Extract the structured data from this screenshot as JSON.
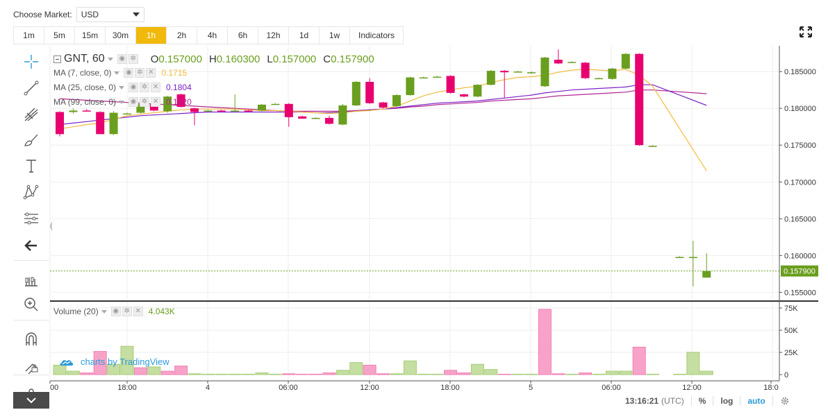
{
  "market": {
    "label": "Choose Market:",
    "selected": "USD"
  },
  "intervals": [
    {
      "label": "1m",
      "active": false
    },
    {
      "label": "5m",
      "active": false
    },
    {
      "label": "15m",
      "active": false
    },
    {
      "label": "30m",
      "active": false
    },
    {
      "label": "1h",
      "active": true
    },
    {
      "label": "2h",
      "active": false
    },
    {
      "label": "4h",
      "active": false
    },
    {
      "label": "6h",
      "active": false
    },
    {
      "label": "12h",
      "active": false
    },
    {
      "label": "1d",
      "active": false
    },
    {
      "label": "1w",
      "active": false
    },
    {
      "label": "Indicators",
      "active": false
    }
  ],
  "tools": [
    {
      "name": "crosshair-icon"
    },
    {
      "name": "trend-line-icon"
    },
    {
      "name": "pitchfork-icon"
    },
    {
      "name": "brush-icon"
    },
    {
      "name": "text-tool-icon"
    },
    {
      "name": "pattern-icon"
    },
    {
      "name": "measure-icon"
    },
    {
      "name": "arrow-left-icon"
    },
    {
      "name": "chart-style-icon"
    },
    {
      "name": "zoom-in-icon"
    },
    {
      "name": "magnet-icon"
    },
    {
      "name": "lock-drawing-icon"
    },
    {
      "name": "lock-icon"
    }
  ],
  "legend": {
    "symbol": "GNT, 60",
    "open_key": "O",
    "open": "0.157000",
    "high_key": "H",
    "high": "0.160300",
    "low_key": "L",
    "low": "0.157000",
    "close_key": "C",
    "close": "0.157900",
    "ma7": {
      "name": "MA (7, close, 0)",
      "value": "0.1715",
      "color": "#f5b93a"
    },
    "ma25": {
      "name": "MA (25, close, 0)",
      "value": "0.1804",
      "color": "#7a20c8"
    },
    "ma99": {
      "name": "MA (99, close, 0)",
      "value": "0.1820",
      "color": "#b12593"
    },
    "volume": {
      "name": "Volume (20)",
      "value": "4.043K"
    }
  },
  "watermark": "charts by TradingView",
  "bottom": {
    "clock": "13:16:21",
    "tz": "(UTC)",
    "percent": "%",
    "log": "log",
    "auto": "auto"
  },
  "colors": {
    "up": "#6a9e1f",
    "down": "#e8006f",
    "up_vol": "#c5dea1",
    "down_vol": "#f7a3c9",
    "price_line": "#6a9e1f",
    "accent": "#f0b90b"
  },
  "chart_data": {
    "type": "candlestick",
    "symbol": "GNT",
    "interval": "60",
    "price_axis": {
      "ticks": [
        "0.185000",
        "0.180000",
        "0.175000",
        "0.170000",
        "0.165000",
        "0.160000",
        "0.155000"
      ],
      "range": [
        0.154,
        0.1885
      ]
    },
    "current_price": "0.157900",
    "time_axis": {
      "ticks": [
        "00",
        "18:00",
        "4",
        "06:00",
        "12:00",
        "18:00",
        "5",
        "06:00",
        "12:00",
        "18:0"
      ]
    },
    "volume_axis": {
      "ticks": [
        "75K",
        "50K",
        "25K",
        "0"
      ],
      "range": [
        0,
        80000
      ]
    },
    "candles": [
      {
        "o": 0.1795,
        "h": 0.1796,
        "l": 0.1762,
        "c": 0.1765
      },
      {
        "o": 0.1795,
        "h": 0.18,
        "l": 0.1793,
        "c": 0.1797
      },
      {
        "o": 0.1797,
        "h": 0.1799,
        "l": 0.1796,
        "c": 0.1796
      },
      {
        "o": 0.1795,
        "h": 0.1796,
        "l": 0.1765,
        "c": 0.1765
      },
      {
        "o": 0.1765,
        "h": 0.1796,
        "l": 0.1764,
        "c": 0.1794
      },
      {
        "o": 0.1793,
        "h": 0.1794,
        "l": 0.1792,
        "c": 0.1793
      },
      {
        "o": 0.1794,
        "h": 0.1808,
        "l": 0.1793,
        "c": 0.1806
      },
      {
        "o": 0.1806,
        "h": 0.1809,
        "l": 0.1796,
        "c": 0.1797
      },
      {
        "o": 0.1796,
        "h": 0.1817,
        "l": 0.1794,
        "c": 0.1816
      },
      {
        "o": 0.1819,
        "h": 0.182,
        "l": 0.1801,
        "c": 0.1802
      },
      {
        "o": 0.18,
        "h": 0.1801,
        "l": 0.1777,
        "c": 0.1795
      },
      {
        "o": 0.1797,
        "h": 0.1798,
        "l": 0.1796,
        "c": 0.1797
      },
      {
        "o": 0.1797,
        "h": 0.1798,
        "l": 0.1795,
        "c": 0.1796
      },
      {
        "o": 0.1796,
        "h": 0.1819,
        "l": 0.1795,
        "c": 0.1797
      },
      {
        "o": 0.1797,
        "h": 0.1798,
        "l": 0.1795,
        "c": 0.1796
      },
      {
        "o": 0.1797,
        "h": 0.1806,
        "l": 0.1796,
        "c": 0.1805
      },
      {
        "o": 0.1806,
        "h": 0.1807,
        "l": 0.1805,
        "c": 0.1806
      },
      {
        "o": 0.1806,
        "h": 0.1807,
        "l": 0.1775,
        "c": 0.1788
      },
      {
        "o": 0.1789,
        "h": 0.179,
        "l": 0.1786,
        "c": 0.1786
      },
      {
        "o": 0.1787,
        "h": 0.1788,
        "l": 0.1786,
        "c": 0.1787
      },
      {
        "o": 0.1787,
        "h": 0.179,
        "l": 0.1778,
        "c": 0.1779
      },
      {
        "o": 0.1778,
        "h": 0.1806,
        "l": 0.1777,
        "c": 0.1804
      },
      {
        "o": 0.1804,
        "h": 0.1837,
        "l": 0.1803,
        "c": 0.1836
      },
      {
        "o": 0.1836,
        "h": 0.1841,
        "l": 0.1806,
        "c": 0.1807
      },
      {
        "o": 0.1808,
        "h": 0.1809,
        "l": 0.18,
        "c": 0.1801
      },
      {
        "o": 0.1803,
        "h": 0.1819,
        "l": 0.1802,
        "c": 0.1818
      },
      {
        "o": 0.1818,
        "h": 0.1843,
        "l": 0.1817,
        "c": 0.1842
      },
      {
        "o": 0.1842,
        "h": 0.1843,
        "l": 0.1841,
        "c": 0.1842
      },
      {
        "o": 0.1843,
        "h": 0.1844,
        "l": 0.1842,
        "c": 0.1843
      },
      {
        "o": 0.1844,
        "h": 0.1845,
        "l": 0.182,
        "c": 0.1821
      },
      {
        "o": 0.1819,
        "h": 0.182,
        "l": 0.1815,
        "c": 0.1816
      },
      {
        "o": 0.1816,
        "h": 0.1833,
        "l": 0.1815,
        "c": 0.1832
      },
      {
        "o": 0.1832,
        "h": 0.1852,
        "l": 0.1831,
        "c": 0.1851
      },
      {
        "o": 0.1851,
        "h": 0.1852,
        "l": 0.1814,
        "c": 0.1849
      },
      {
        "o": 0.185,
        "h": 0.1851,
        "l": 0.1849,
        "c": 0.185
      },
      {
        "o": 0.1849,
        "h": 0.185,
        "l": 0.1847,
        "c": 0.1849
      },
      {
        "o": 0.183,
        "h": 0.187,
        "l": 0.1829,
        "c": 0.1869
      },
      {
        "o": 0.1866,
        "h": 0.188,
        "l": 0.186,
        "c": 0.1861
      },
      {
        "o": 0.1863,
        "h": 0.1864,
        "l": 0.1862,
        "c": 0.1863
      },
      {
        "o": 0.1862,
        "h": 0.1863,
        "l": 0.184,
        "c": 0.1841
      },
      {
        "o": 0.1841,
        "h": 0.1842,
        "l": 0.184,
        "c": 0.1841
      },
      {
        "o": 0.184,
        "h": 0.1855,
        "l": 0.1839,
        "c": 0.1854
      },
      {
        "o": 0.1854,
        "h": 0.1875,
        "l": 0.1853,
        "c": 0.1874
      },
      {
        "o": 0.1874,
        "h": 0.1875,
        "l": 0.1749,
        "c": 0.175
      },
      {
        "o": 0.1749,
        "h": 0.175,
        "l": 0.1748,
        "c": 0.1749
      },
      null,
      {
        "o": 0.1598,
        "h": 0.1599,
        "l": 0.1597,
        "c": 0.1598
      },
      {
        "o": 0.1598,
        "h": 0.162,
        "l": 0.1558,
        "c": 0.1598
      },
      {
        "o": 0.157,
        "h": 0.1603,
        "l": 0.157,
        "c": 0.1579
      }
    ],
    "volumes": [
      {
        "v": 11000,
        "up": true
      },
      {
        "v": 4000,
        "up": true
      },
      {
        "v": 2000,
        "up": false
      },
      {
        "v": 27000,
        "up": false
      },
      {
        "v": 12000,
        "up": true
      },
      {
        "v": 33000,
        "up": true
      },
      {
        "v": 8000,
        "up": false
      },
      {
        "v": 9000,
        "up": true
      },
      {
        "v": 4000,
        "up": false
      },
      {
        "v": 10000,
        "up": false
      },
      {
        "v": 1000,
        "up": true
      },
      {
        "v": 500,
        "up": true
      },
      {
        "v": 500,
        "up": true
      },
      {
        "v": 500,
        "up": true
      },
      {
        "v": 500,
        "up": true
      },
      {
        "v": 2000,
        "up": true
      },
      {
        "v": 500,
        "up": true
      },
      {
        "v": 1000,
        "up": false
      },
      {
        "v": 500,
        "up": false
      },
      {
        "v": 500,
        "up": false
      },
      {
        "v": 2000,
        "up": false
      },
      {
        "v": 5000,
        "up": true
      },
      {
        "v": 14000,
        "up": true
      },
      {
        "v": 11000,
        "up": false
      },
      {
        "v": 1000,
        "up": false
      },
      {
        "v": 1000,
        "up": true
      },
      {
        "v": 16000,
        "up": true
      },
      {
        "v": 500,
        "up": true
      },
      {
        "v": 500,
        "up": true
      },
      {
        "v": 5000,
        "up": false
      },
      {
        "v": 2000,
        "up": false
      },
      {
        "v": 12000,
        "up": true
      },
      {
        "v": 6000,
        "up": true
      },
      {
        "v": 500,
        "up": false
      },
      {
        "v": 500,
        "up": true
      },
      {
        "v": 500,
        "up": true
      },
      {
        "v": 76000,
        "up": false
      },
      {
        "v": 1000,
        "up": false
      },
      {
        "v": 500,
        "up": true
      },
      {
        "v": 2000,
        "up": false
      },
      {
        "v": 500,
        "up": true
      },
      {
        "v": 4000,
        "up": true
      },
      {
        "v": 4000,
        "up": true
      },
      {
        "v": 32000,
        "up": false
      },
      {
        "v": 500,
        "up": true
      },
      null,
      {
        "v": 500,
        "up": true
      },
      {
        "v": 26000,
        "up": true
      },
      {
        "v": 4000,
        "up": true
      }
    ],
    "ma7": [
      0.1772,
      0.1775,
      0.1778,
      0.178,
      0.1785,
      0.179,
      0.1792,
      0.1794,
      0.1796,
      0.1798,
      0.1799,
      0.1799,
      0.1799,
      0.1799,
      0.1798,
      0.1797,
      0.1797,
      0.1796,
      0.1795,
      0.1794,
      0.1793,
      0.1794,
      0.1796,
      0.1797,
      0.1799,
      0.1803,
      0.181,
      0.1817,
      0.1822,
      0.1825,
      0.1828,
      0.183,
      0.1835,
      0.1839,
      0.1842,
      0.1843,
      0.1845,
      0.1849,
      0.1852,
      0.1853,
      0.1852,
      0.1851,
      0.1853,
      0.1845,
      0.183,
      null,
      null,
      null,
      0.1715
    ],
    "ma25": [
      0.1778,
      0.178,
      0.1782,
      0.1784,
      0.1786,
      0.1788,
      0.179,
      0.1791,
      0.1792,
      0.1793,
      0.1794,
      0.1795,
      0.1795,
      0.1795,
      0.1795,
      0.1795,
      0.1795,
      0.1795,
      0.1795,
      0.1794,
      0.1794,
      0.1795,
      0.1796,
      0.1798,
      0.1799,
      0.1801,
      0.1803,
      0.1805,
      0.1807,
      0.1808,
      0.1809,
      0.181,
      0.1812,
      0.1814,
      0.1816,
      0.1818,
      0.1821,
      0.1823,
      0.1825,
      0.1826,
      0.1827,
      0.1828,
      0.1829,
      0.1832,
      0.1832,
      null,
      null,
      null,
      0.1804
    ],
    "ma99": [
      0.1813,
      0.1812,
      0.1811,
      0.181,
      0.1809,
      0.1808,
      0.1807,
      0.1806,
      0.1805,
      0.1804,
      0.1803,
      0.1802,
      0.1801,
      0.18,
      0.1799,
      0.1798,
      0.1797,
      0.1796,
      0.1796,
      0.1796,
      0.1796,
      0.1796,
      0.1797,
      0.1798,
      0.1799,
      0.18,
      0.1802,
      0.1803,
      0.1805,
      0.1806,
      0.1807,
      0.1808,
      0.181,
      0.1811,
      0.1812,
      0.1813,
      0.1815,
      0.1817,
      0.1818,
      0.1819,
      0.182,
      0.1821,
      0.1822,
      0.1825,
      0.1825,
      null,
      null,
      null,
      0.182
    ]
  }
}
